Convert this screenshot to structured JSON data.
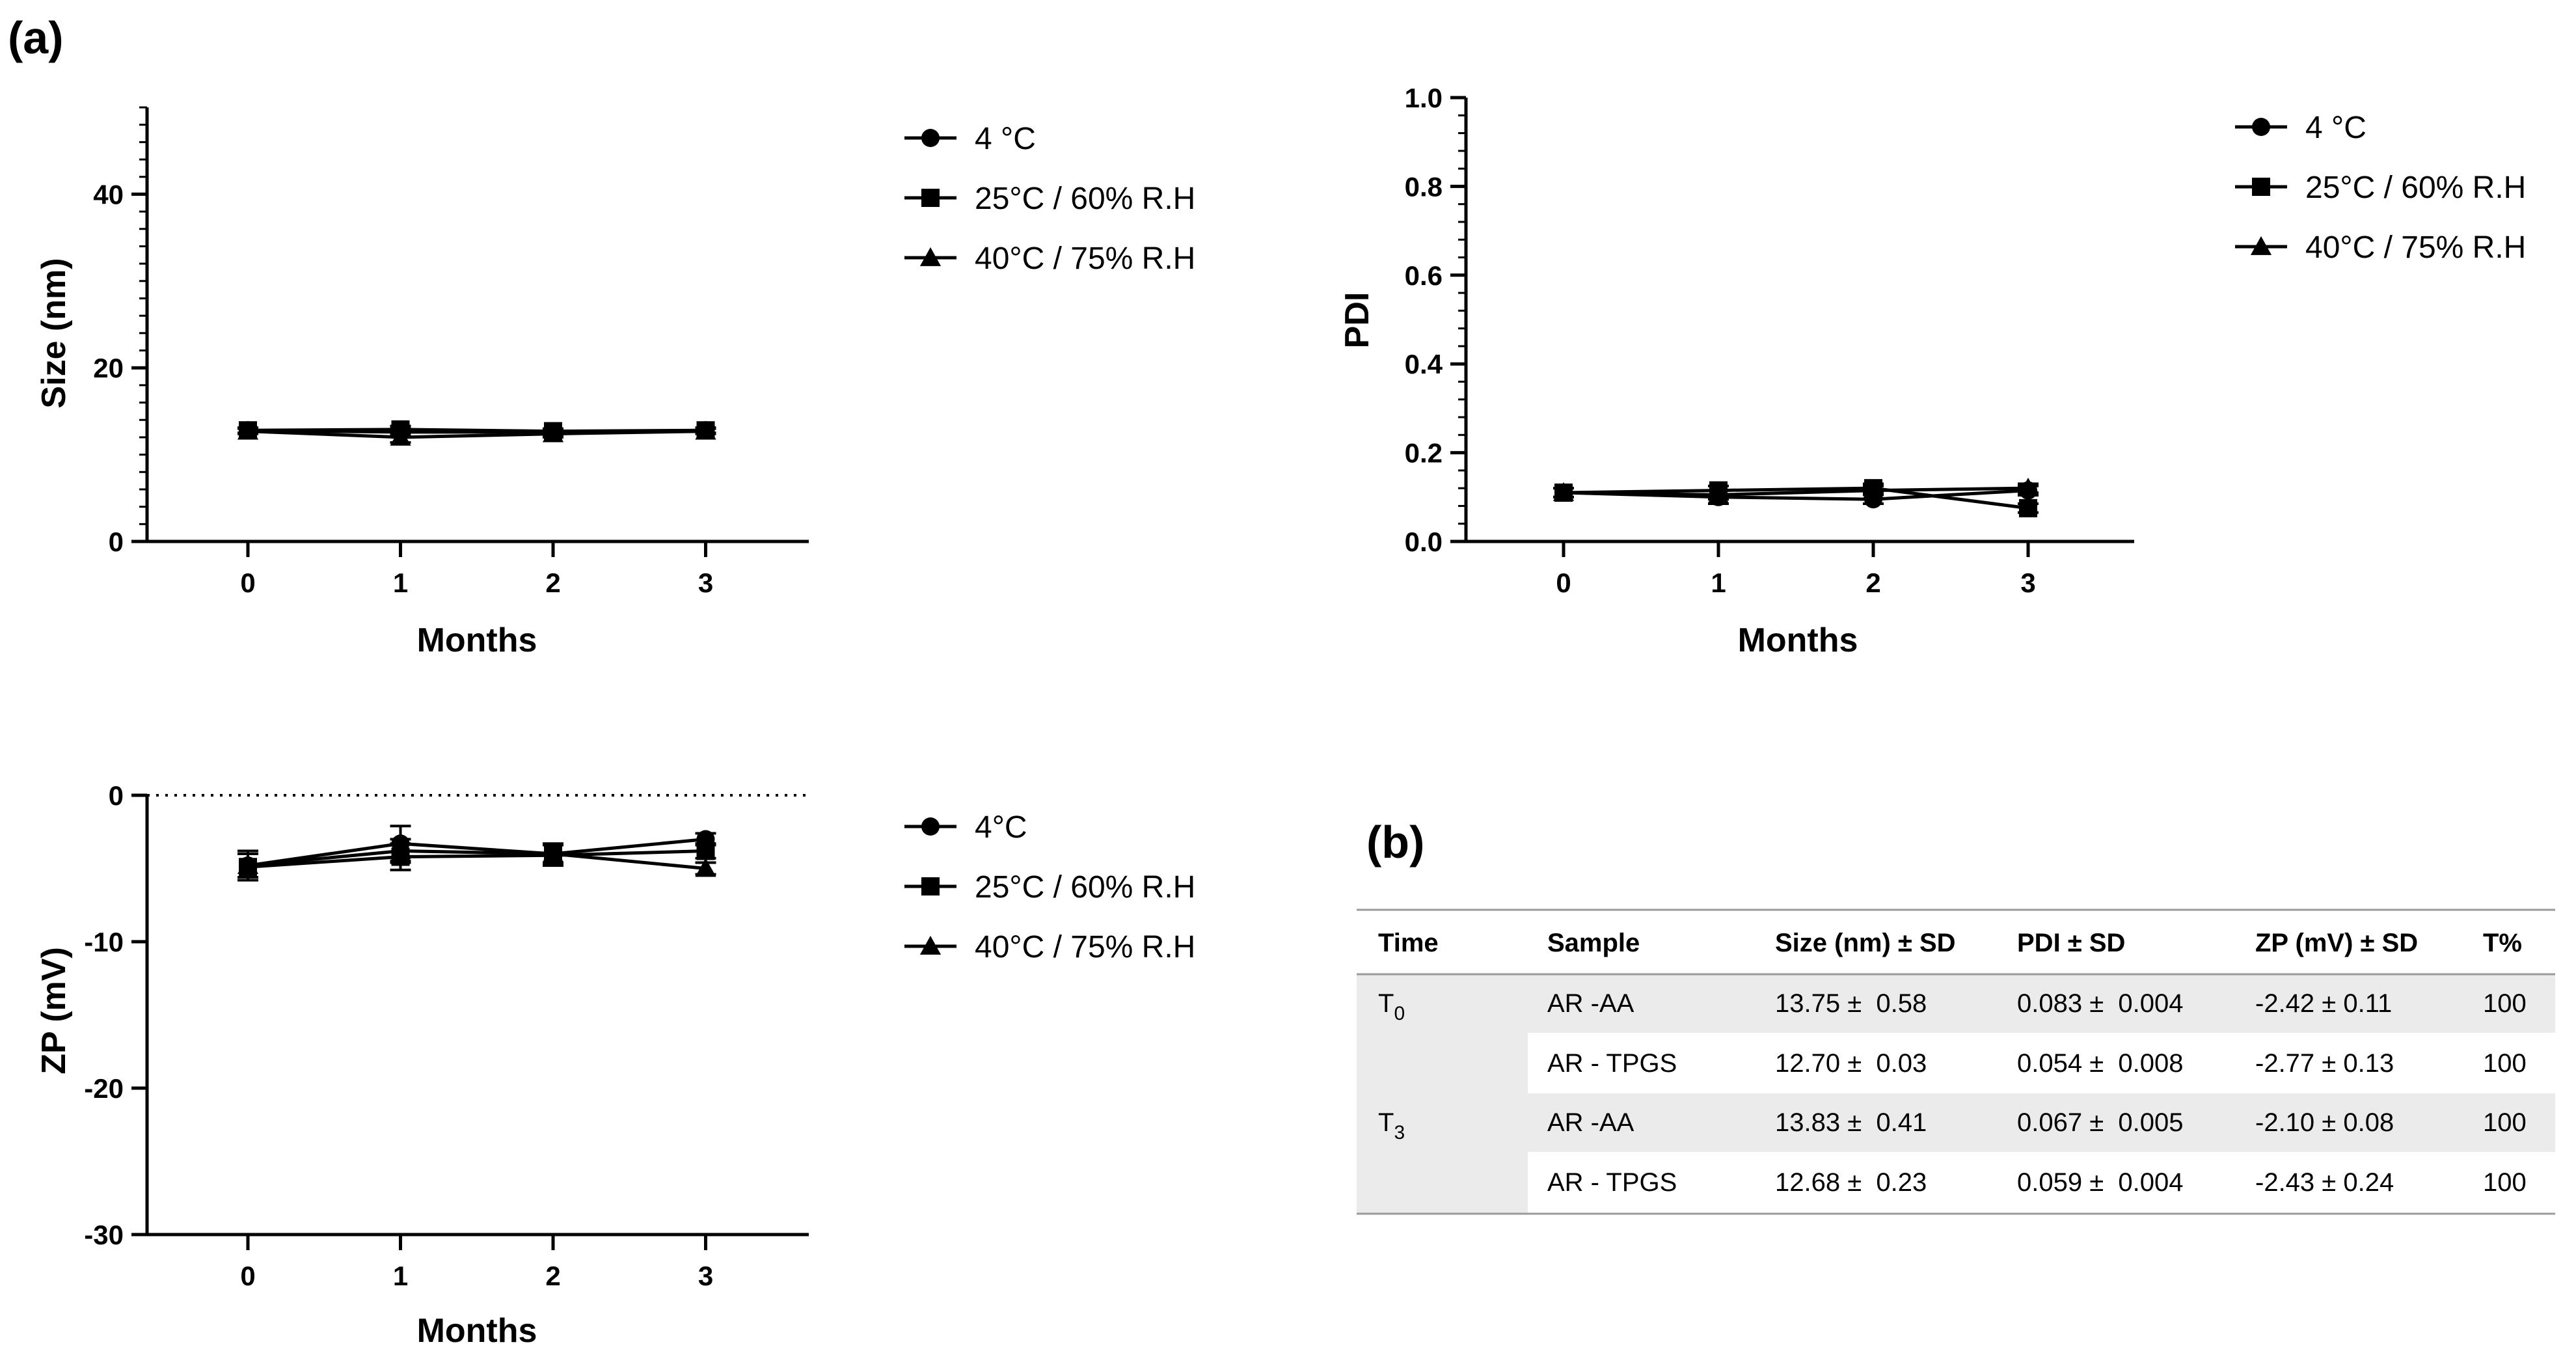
{
  "figure": {
    "panel_a_label": "(a)",
    "panel_b_label": "(b)"
  },
  "colors": {
    "line": "#000000",
    "table_shade": "#ebebeb",
    "table_rule": "#9a9a9a"
  },
  "chart_data": [
    {
      "id": "size",
      "type": "line",
      "title": "",
      "xlabel": "Months",
      "ylabel": "Size (nm)",
      "x": [
        0,
        1,
        2,
        3
      ],
      "xticks": [
        "0",
        "1",
        "2",
        "3"
      ],
      "xlim": [
        -0.65,
        3.65
      ],
      "ylim": [
        0,
        50
      ],
      "yticks": [
        0,
        20,
        40
      ],
      "yminor_step": 2,
      "zero_line_dotted": false,
      "legend": {
        "position": "right",
        "entries": [
          "4 °C",
          "25°C / 60% R.H",
          "40°C / 75% R.H"
        ]
      },
      "series": [
        {
          "name": "4 °C",
          "marker": "circle",
          "values": [
            12.8,
            12.6,
            12.6,
            12.8
          ],
          "errors": [
            0.3,
            0.4,
            0.3,
            0.3
          ]
        },
        {
          "name": "25°C / 60% R.H",
          "marker": "square",
          "values": [
            12.8,
            12.9,
            12.7,
            12.8
          ],
          "errors": [
            0.3,
            0.4,
            0.3,
            0.3
          ]
        },
        {
          "name": "40°C / 75% R.H",
          "marker": "triangle",
          "values": [
            12.7,
            12.0,
            12.4,
            12.7
          ],
          "errors": [
            0.3,
            0.6,
            0.4,
            0.3
          ]
        }
      ]
    },
    {
      "id": "pdi",
      "type": "line",
      "title": "",
      "xlabel": "Months",
      "ylabel": "PDI",
      "x": [
        0,
        1,
        2,
        3
      ],
      "xticks": [
        "0",
        "1",
        "2",
        "3"
      ],
      "xlim": [
        -0.65,
        3.65
      ],
      "ylim": [
        0,
        1.0
      ],
      "yticks": [
        "0.0",
        "0.2",
        "0.4",
        "0.6",
        "0.8",
        "1.0"
      ],
      "yminor_step": 0.04,
      "zero_line_dotted": false,
      "legend": {
        "position": "top-right",
        "entries": [
          "4 °C",
          "25°C / 60% R.H",
          "40°C / 75% R.H"
        ]
      },
      "series": [
        {
          "name": "4 °C",
          "marker": "circle",
          "values": [
            0.11,
            0.1,
            0.095,
            0.115
          ],
          "errors": [
            0.01,
            0.015,
            0.01,
            0.01
          ]
        },
        {
          "name": "25°C / 60% R.H",
          "marker": "square",
          "values": [
            0.11,
            0.115,
            0.12,
            0.075
          ],
          "errors": [
            0.01,
            0.01,
            0.01,
            0.01
          ]
        },
        {
          "name": "40°C / 75% R.H",
          "marker": "triangle",
          "values": [
            0.11,
            0.105,
            0.115,
            0.12
          ],
          "errors": [
            0.01,
            0.01,
            0.01,
            0.01
          ]
        }
      ]
    },
    {
      "id": "zp",
      "type": "line",
      "title": "",
      "xlabel": "Months",
      "ylabel": "ZP (mV)",
      "x": [
        0,
        1,
        2,
        3
      ],
      "xticks": [
        "0",
        "1",
        "2",
        "3"
      ],
      "xlim": [
        -0.65,
        3.65
      ],
      "ylim": [
        -30,
        0
      ],
      "yticks": [
        0,
        -10,
        -20,
        -30
      ],
      "yminor_step": null,
      "zero_line_dotted": true,
      "legend": {
        "position": "right",
        "entries": [
          "4°C",
          "25°C / 60% R.H",
          "40°C / 75% R.H"
        ]
      },
      "series": [
        {
          "name": "4°C",
          "marker": "circle",
          "values": [
            -4.8,
            -3.3,
            -4.0,
            -3.0
          ],
          "errors": [
            1.0,
            1.2,
            0.6,
            0.4
          ]
        },
        {
          "name": "25°C / 60% R.H",
          "marker": "square",
          "values": [
            -4.9,
            -4.2,
            -4.1,
            -3.8
          ],
          "errors": [
            0.9,
            0.9,
            0.7,
            0.5
          ]
        },
        {
          "name": "40°C / 75% R.H",
          "marker": "triangle",
          "values": [
            -4.8,
            -3.8,
            -4.0,
            -5.0
          ],
          "errors": [
            0.8,
            0.8,
            0.7,
            0.4
          ]
        }
      ]
    },
    {
      "id": "stability-table",
      "type": "table",
      "columns": [
        "Time",
        "Sample",
        "Size (nm) ± SD",
        "PDI ± SD",
        "ZP (mV) ± SD",
        "T%"
      ],
      "rows": [
        {
          "time_main": "T",
          "time_sub": "0",
          "sample": "AR -AA",
          "size": "13.75 ±  0.58",
          "pdi": "0.083 ±  0.004",
          "zp": "-2.42 ± 0.11",
          "t": "100"
        },
        {
          "time_main": "",
          "time_sub": "",
          "sample": "AR - TPGS",
          "size": "12.70 ±  0.03",
          "pdi": "0.054 ±  0.008",
          "zp": "-2.77 ± 0.13",
          "t": "100"
        },
        {
          "time_main": "T",
          "time_sub": "3",
          "sample": "AR -AA",
          "size": "13.83 ±  0.41",
          "pdi": "0.067 ±  0.005",
          "zp": "-2.10 ± 0.08",
          "t": "100"
        },
        {
          "time_main": "",
          "time_sub": "",
          "sample": "AR - TPGS",
          "size": "12.68 ±  0.23",
          "pdi": "0.059 ±  0.004",
          "zp": "-2.43 ± 0.24",
          "t": "100"
        }
      ]
    }
  ]
}
